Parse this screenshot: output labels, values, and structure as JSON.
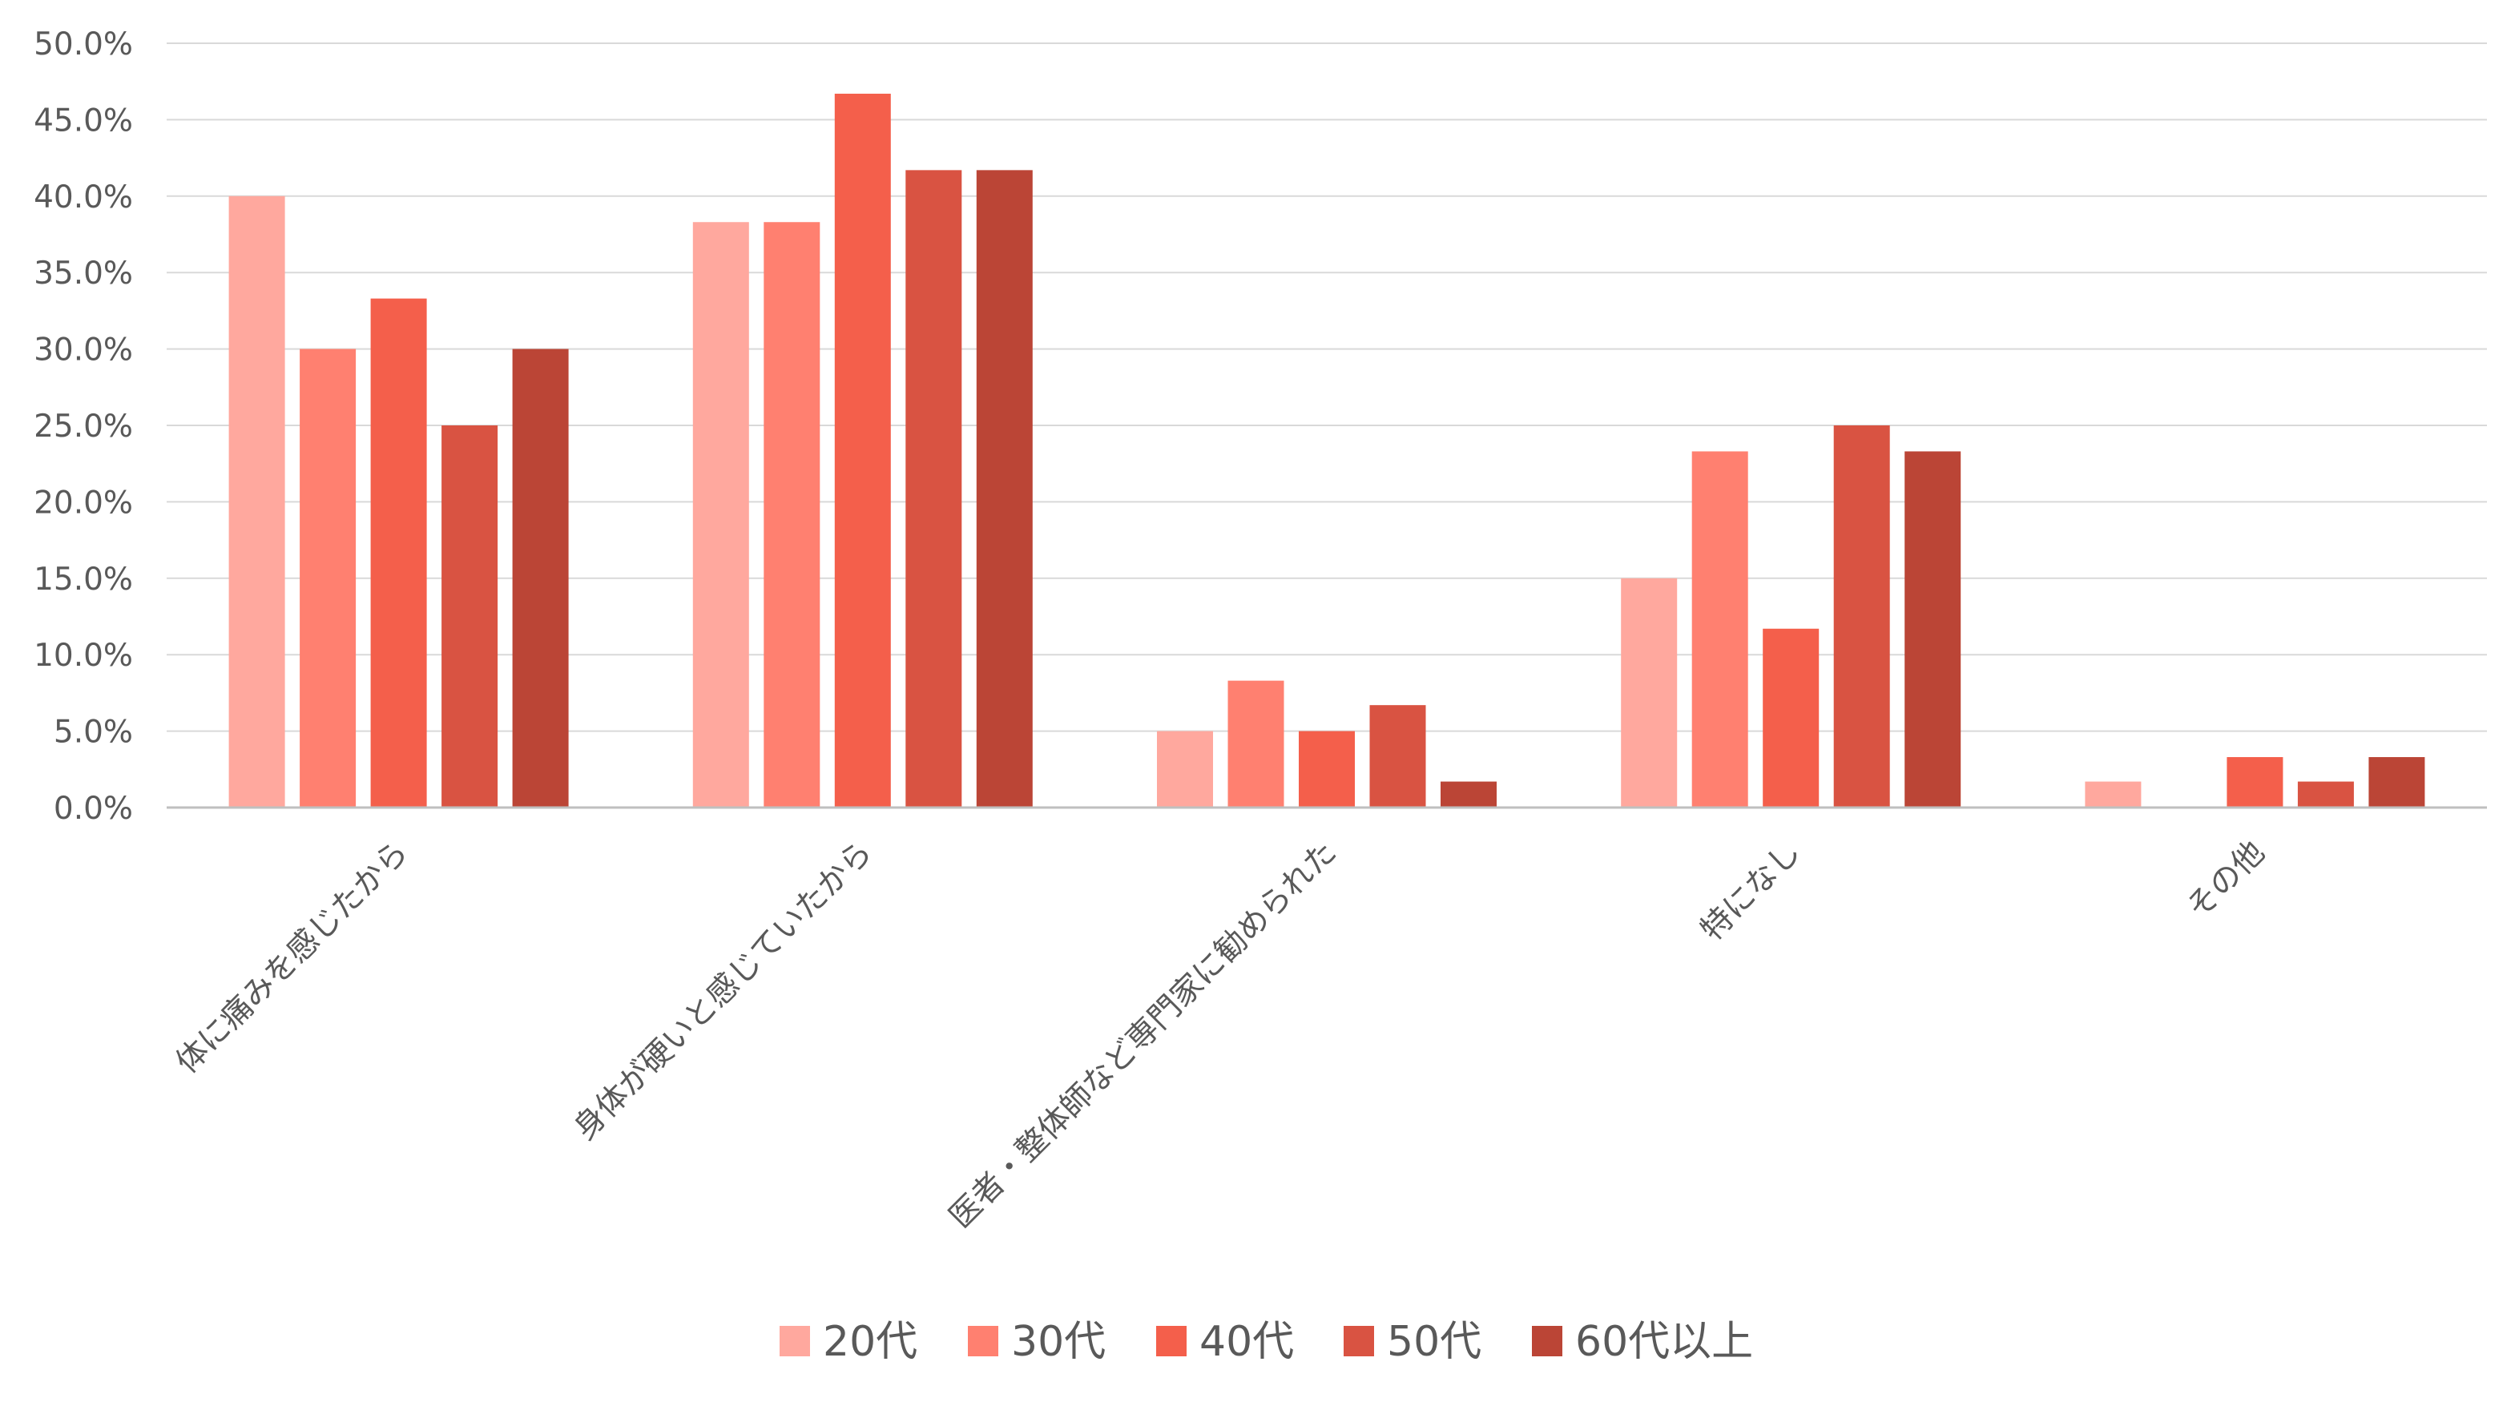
{
  "chart_data": {
    "type": "bar",
    "categories": [
      "体に痛みを感じたから",
      "身体が硬いと感じていたから",
      "医者・整体師など専門家に勧められた",
      "特になし",
      "その他"
    ],
    "series": [
      {
        "name": "20代",
        "color": "#ffa89e",
        "values": [
          40.0,
          38.3,
          5.0,
          15.0,
          1.7
        ]
      },
      {
        "name": "30代",
        "color": "#ff8070",
        "values": [
          30.0,
          38.3,
          8.3,
          23.3,
          0.0
        ]
      },
      {
        "name": "40代",
        "color": "#f45f4b",
        "values": [
          33.3,
          46.7,
          5.0,
          11.7,
          3.3
        ]
      },
      {
        "name": "50代",
        "color": "#d95342",
        "values": [
          25.0,
          41.7,
          6.7,
          25.0,
          1.7
        ]
      },
      {
        "name": "60代以上",
        "color": "#bb4536",
        "values": [
          30.0,
          41.7,
          1.7,
          23.3,
          3.3
        ]
      }
    ],
    "ylim": [
      0,
      50
    ],
    "yticks": [
      "0.0%",
      "5.0%",
      "10.0%",
      "15.0%",
      "20.0%",
      "25.0%",
      "30.0%",
      "35.0%",
      "40.0%",
      "45.0%",
      "50.0%"
    ],
    "grid": true,
    "legend_position": "bottom"
  }
}
